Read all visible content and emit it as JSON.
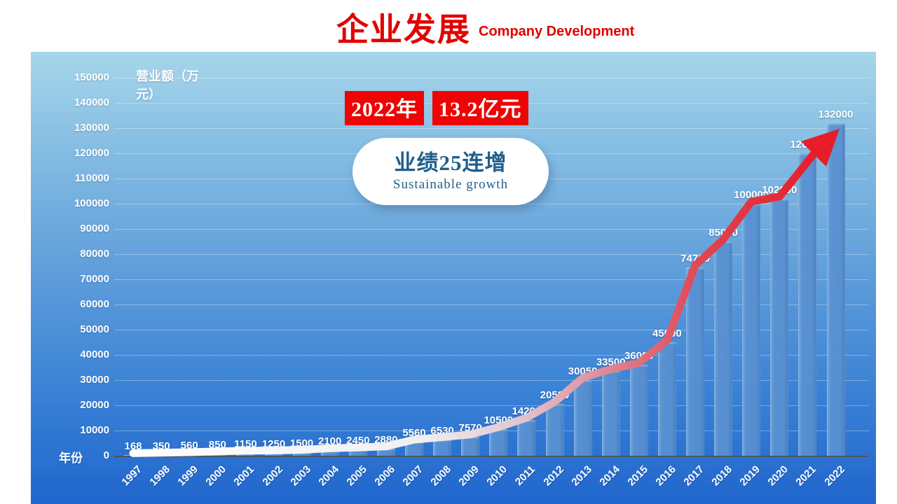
{
  "slide": {
    "title_zh": "企业发展",
    "title_en": "Company Development"
  },
  "badge": {
    "year": "2022年",
    "amount": "13.2亿元"
  },
  "bubble": {
    "headline": "业绩25连增",
    "subline": "Sustainable growth"
  },
  "chart_data": {
    "type": "bar",
    "title": "",
    "ylabel": "营业额（万元）",
    "xlabel": "年份",
    "categories": [
      "1997",
      "1998",
      "1999",
      "2000",
      "2001",
      "2002",
      "2003",
      "2004",
      "2005",
      "2006",
      "2007",
      "2008",
      "2009",
      "2010",
      "2011",
      "2012",
      "2013",
      "2014",
      "2015",
      "2016",
      "2017",
      "2018",
      "2019",
      "2020",
      "2021",
      "2022"
    ],
    "values": [
      168,
      350,
      560,
      850,
      1150,
      1250,
      1500,
      2100,
      2450,
      2880,
      5560,
      6530,
      7570,
      10500,
      14200,
      20500,
      30050,
      33500,
      36000,
      45000,
      74700,
      85000,
      100000,
      102000,
      120000,
      132000
    ],
    "ylim": [
      0,
      150000
    ],
    "yticks": [
      0,
      10000,
      20000,
      30000,
      40000,
      50000,
      60000,
      70000,
      80000,
      90000,
      100000,
      110000,
      120000,
      130000,
      140000,
      150000
    ],
    "grid": true,
    "legend": "none",
    "annotations": {
      "trend_arrow": "thick swoosh line following bar tops, white at 1997 fading through pink to red, ending in large red arrowhead at 2022 bar"
    },
    "colors": {
      "bar": "#5b92d2",
      "panel_top": "#a6d6ea",
      "panel_bottom": "#2066cd",
      "labels": "#ffffff",
      "arrow_start": "#ffffff",
      "arrow_mid": "#dfa0ac",
      "arrow_end": "#e61e2a",
      "accent_red": "#ee0404",
      "title_red": "#e20000",
      "bubble_text": "#1e5f8e"
    }
  }
}
